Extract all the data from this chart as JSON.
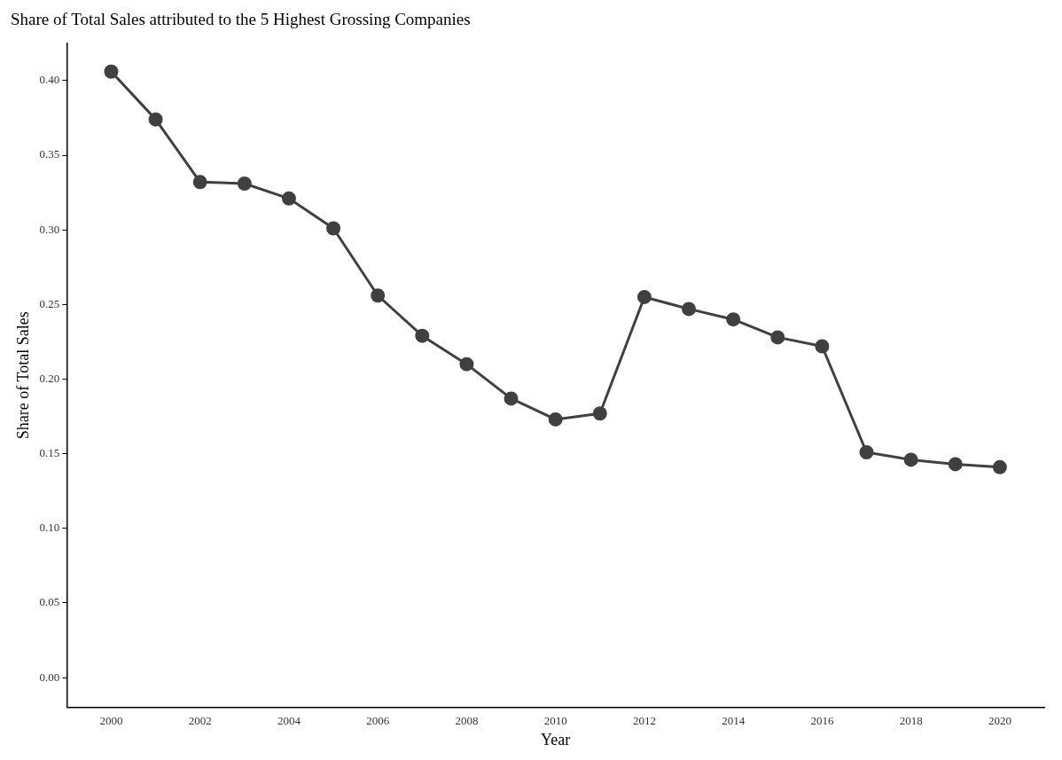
{
  "chart_data": {
    "type": "line",
    "title": "Share of Total Sales attributed to the 5 Highest Grossing Companies",
    "xlabel": "Year",
    "ylabel": "Share of Total Sales",
    "x": [
      2000,
      2001,
      2002,
      2003,
      2004,
      2005,
      2006,
      2007,
      2008,
      2009,
      2010,
      2011,
      2012,
      2013,
      2014,
      2015,
      2016,
      2017,
      2018,
      2019,
      2020
    ],
    "values": [
      0.406,
      0.374,
      0.332,
      0.331,
      0.321,
      0.301,
      0.256,
      0.229,
      0.21,
      0.187,
      0.173,
      0.177,
      0.255,
      0.247,
      0.24,
      0.228,
      0.222,
      0.151,
      0.146,
      0.143,
      0.141
    ],
    "color": "#404040",
    "marker": "circle",
    "line_style": "solid",
    "xlim": [
      1999,
      2021
    ],
    "ylim": [
      -0.02,
      0.425
    ],
    "xticks": [
      2000,
      2002,
      2004,
      2006,
      2008,
      2010,
      2012,
      2014,
      2016,
      2018,
      2020
    ],
    "yticks": [
      {
        "value": 0,
        "label": "0.00"
      },
      {
        "value": 0.05,
        "label": "0.05"
      },
      {
        "value": 0.1,
        "label": "0.10"
      },
      {
        "value": 0.15,
        "label": "0.15"
      },
      {
        "value": 0.2,
        "label": "0.20"
      },
      {
        "value": 0.25,
        "label": "0.25"
      },
      {
        "value": 0.3,
        "label": "0.30"
      },
      {
        "value": 0.35,
        "label": "0.35"
      },
      {
        "value": 0.4,
        "label": "0.40"
      }
    ]
  }
}
